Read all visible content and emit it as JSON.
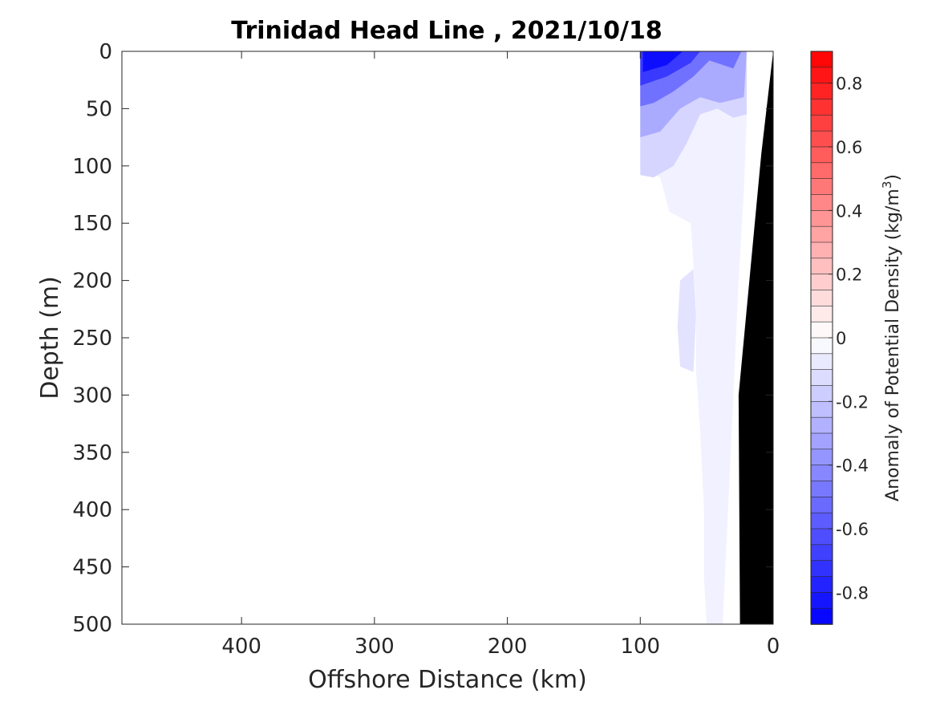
{
  "chart_data": {
    "type": "heatmap",
    "title": "Trinidad Head Line , 2021/10/18",
    "xlabel": "Offshore Distance (km)",
    "ylabel": "Depth (m)",
    "colorbar_label_main": "Anomaly of Potential Density (kg/m",
    "colorbar_label_sup": "3",
    "colorbar_label_end": ")",
    "xlim": [
      490,
      0
    ],
    "ylim": [
      500,
      0
    ],
    "x_reversed": true,
    "y_reversed": true,
    "x_ticks": [
      400,
      300,
      200,
      100,
      0
    ],
    "y_ticks": [
      0,
      50,
      100,
      150,
      200,
      250,
      300,
      350,
      400,
      450,
      500
    ],
    "clim": [
      -0.9,
      0.9
    ],
    "colorbar_levels": 36,
    "colorbar_ticks": [
      0.8,
      0.6,
      0.4,
      0.2,
      0,
      -0.2,
      -0.4,
      -0.6,
      -0.8
    ],
    "colormap": {
      "low": "#0000ff",
      "mid": "#ffffff",
      "high": "#ff0000"
    },
    "bathymetry_color": "#000000",
    "contour_regions": [
      {
        "anomaly": -0.05,
        "points": [
          [
            100,
            0
          ],
          [
            20,
            0
          ],
          [
            20,
            60
          ],
          [
            22,
            120
          ],
          [
            26,
            200
          ],
          [
            30,
            300
          ],
          [
            34,
            400
          ],
          [
            38,
            500
          ],
          [
            50,
            500
          ],
          [
            52,
            460
          ],
          [
            52,
            400
          ],
          [
            55,
            330
          ],
          [
            58,
            280
          ],
          [
            58,
            220
          ],
          [
            62,
            150
          ],
          [
            78,
            140
          ],
          [
            85,
            110
          ],
          [
            100,
            100
          ]
        ]
      },
      {
        "anomaly": -0.15,
        "points": [
          [
            100,
            0
          ],
          [
            20,
            0
          ],
          [
            20,
            55
          ],
          [
            30,
            58
          ],
          [
            42,
            50
          ],
          [
            55,
            55
          ],
          [
            65,
            80
          ],
          [
            75,
            100
          ],
          [
            90,
            110
          ],
          [
            100,
            108
          ]
        ]
      },
      {
        "anomaly": -0.3,
        "points": [
          [
            100,
            0
          ],
          [
            20,
            0
          ],
          [
            22,
            40
          ],
          [
            40,
            45
          ],
          [
            55,
            40
          ],
          [
            70,
            50
          ],
          [
            85,
            70
          ],
          [
            100,
            75
          ]
        ]
      },
      {
        "anomaly": -0.5,
        "points": [
          [
            100,
            0
          ],
          [
            24,
            0
          ],
          [
            30,
            15
          ],
          [
            48,
            8
          ],
          [
            60,
            22
          ],
          [
            75,
            35
          ],
          [
            90,
            45
          ],
          [
            100,
            48
          ]
        ]
      },
      {
        "anomaly": -0.7,
        "points": [
          [
            100,
            0
          ],
          [
            55,
            0
          ],
          [
            62,
            10
          ],
          [
            80,
            22
          ],
          [
            100,
            30
          ]
        ]
      },
      {
        "anomaly": -0.85,
        "points": [
          [
            98,
            0
          ],
          [
            68,
            0
          ],
          [
            80,
            12
          ],
          [
            98,
            18
          ]
        ]
      },
      {
        "anomaly": -0.1,
        "points": [
          [
            70,
            200
          ],
          [
            60,
            190
          ],
          [
            58,
            230
          ],
          [
            60,
            280
          ],
          [
            70,
            275
          ],
          [
            72,
            240
          ]
        ]
      }
    ],
    "bathymetry": [
      [
        0,
        0
      ],
      [
        9,
        90
      ],
      [
        26,
        300
      ],
      [
        25,
        500
      ],
      [
        0,
        500
      ]
    ]
  }
}
